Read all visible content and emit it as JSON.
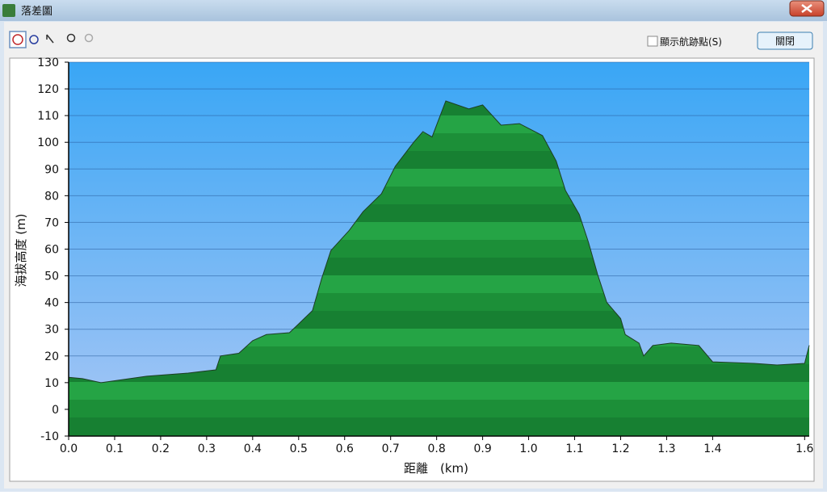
{
  "window": {
    "title": "落差圖"
  },
  "toolbar": {
    "checkbox_label": "顯示航跡點(S)",
    "button": "關閉"
  },
  "chart_data": {
    "type": "area",
    "x_label": "距離　(km)",
    "y_label": "海拔高度 (m)",
    "x": [
      0,
      0.03,
      0.07,
      0.17,
      0.26,
      0.32,
      0.33,
      0.37,
      0.4,
      0.43,
      0.48,
      0.5,
      0.53,
      0.55,
      0.57,
      0.61,
      0.64,
      0.68,
      0.71,
      0.75,
      0.77,
      0.79,
      0.82,
      0.87,
      0.9,
      0.94,
      0.98,
      1.03,
      1.06,
      1.08,
      1.11,
      1.13,
      1.15,
      1.17,
      1.2,
      1.21,
      1.24,
      1.25,
      1.27,
      1.31,
      1.37,
      1.4,
      1.49,
      1.54,
      1.6,
      1.61
    ],
    "values": [
      12,
      11.5,
      10,
      12.4,
      13.6,
      14.8,
      20,
      21,
      25.7,
      28,
      28.7,
      32,
      37,
      49,
      59.5,
      67,
      74,
      80.7,
      91,
      100,
      104,
      102,
      115.5,
      112.5,
      114,
      106.4,
      107,
      102.5,
      93,
      82,
      73,
      62.6,
      50.5,
      40,
      34,
      28,
      24.8,
      20,
      23.9,
      24.8,
      23.9,
      17.8,
      17.2,
      16.6,
      17.2,
      24
    ],
    "color": "#1f9a3c",
    "line_color": "#1d3d24",
    "xlim": [
      0,
      1.61
    ],
    "ylim": [
      -10,
      130
    ],
    "xticks": [
      {
        "value": 0,
        "label": "0.0"
      },
      0.1,
      0.2,
      0.3,
      0.4,
      0.5,
      0.6,
      0.7,
      0.8,
      0.9,
      {
        "value": 1,
        "label": "1.0"
      },
      1.1,
      1.2,
      1.3,
      1.4,
      1.6
    ],
    "yticks": [
      -10,
      0,
      10,
      20,
      30,
      40,
      50,
      60,
      70,
      80,
      90,
      100,
      110,
      120,
      130
    ],
    "grid": true
  }
}
